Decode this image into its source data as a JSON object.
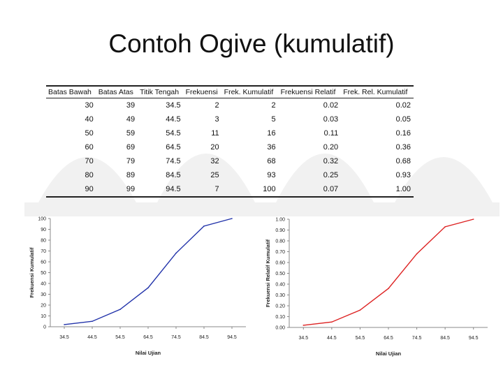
{
  "slide": {
    "title": "Contoh Ogive (kumulatif)"
  },
  "table": {
    "headers": [
      "Batas Bawah",
      "Batas Atas",
      "Titik Tengah",
      "Frekuensi",
      "Frek. Kumulatif",
      "Frekuensi Relatif",
      "Frek. Rel. Kumulatif"
    ],
    "rows": [
      [
        "30",
        "39",
        "34.5",
        "2",
        "2",
        "0.02",
        "0.02"
      ],
      [
        "40",
        "49",
        "44.5",
        "3",
        "5",
        "0.03",
        "0.05"
      ],
      [
        "50",
        "59",
        "54.5",
        "11",
        "16",
        "0.11",
        "0.16"
      ],
      [
        "60",
        "69",
        "64.5",
        "20",
        "36",
        "0.20",
        "0.36"
      ],
      [
        "70",
        "79",
        "74.5",
        "32",
        "68",
        "0.32",
        "0.68"
      ],
      [
        "80",
        "89",
        "84.5",
        "25",
        "93",
        "0.25",
        "0.93"
      ],
      [
        "90",
        "99",
        "94.5",
        "7",
        "100",
        "0.07",
        "1.00"
      ]
    ]
  },
  "chart_data": [
    {
      "type": "line",
      "categories": [
        "34.5",
        "44.5",
        "54.5",
        "64.5",
        "74.5",
        "84.5",
        "94.5"
      ],
      "series": [
        {
          "values": [
            2,
            5,
            16,
            36,
            68,
            93,
            100
          ],
          "color": "#2233aa"
        }
      ],
      "xlabel": "Nilai Ujian",
      "ylabel": "Frekuensi Kumulatif",
      "ylim": [
        0,
        100
      ],
      "yticks": [
        "0",
        "10",
        "20",
        "30",
        "40",
        "50",
        "60",
        "70",
        "80",
        "90",
        "100"
      ],
      "grid": false
    },
    {
      "type": "line",
      "categories": [
        "34.5",
        "44.5",
        "54.5",
        "64.5",
        "74.5",
        "84.5",
        "94.5"
      ],
      "series": [
        {
          "values": [
            0.02,
            0.05,
            0.16,
            0.36,
            0.68,
            0.93,
            1.0
          ],
          "color": "#dd2222"
        }
      ],
      "xlabel": "Nilai Ujian",
      "ylabel": "Frekuensi Relatif Kumulatif",
      "ylim": [
        0,
        1
      ],
      "yticks": [
        "0.00",
        "0.10",
        "0.20",
        "0.30",
        "0.40",
        "0.50",
        "0.60",
        "0.70",
        "0.80",
        "0.90",
        "1.00"
      ],
      "grid": false
    }
  ]
}
